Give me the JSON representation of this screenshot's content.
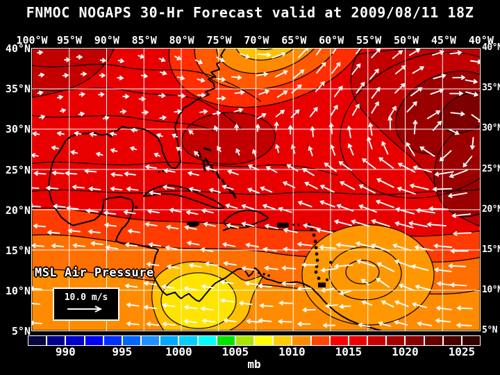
{
  "title": "FNMOC NOGAPS 30-Hr Forecast valid at 2009/08/11 18Z",
  "map": {
    "lon_labels": [
      "100°W",
      "95°W",
      "90°W",
      "85°W",
      "80°W",
      "75°W",
      "70°W",
      "65°W",
      "60°W",
      "55°W",
      "50°W",
      "45°W",
      "40°W"
    ],
    "lat_labels": [
      "40°N",
      "35°N",
      "30°N",
      "25°N",
      "20°N",
      "15°N",
      "10°N",
      "5°N"
    ],
    "field_label": "MSL Air Pressure",
    "wind_legend_label": "10.0 m/s",
    "grid_color": "#ffffff",
    "coast_color": "#000000",
    "arrow_color": "#ffffff",
    "field_colors": {
      "base": "#E80000",
      "high": "#C20000",
      "high_core": "#9A0000",
      "high_deep": "#7C0000",
      "band1": "#FF3B00",
      "band2": "#FF6F00",
      "band3": "#FF8C00",
      "swirl": "#FF9800",
      "trough1": "#FF2D00",
      "trough2": "#FF5A00",
      "trough3": "#FF8C00",
      "trough4": "#FFC100",
      "trough5": "#FFE400",
      "low_ring": "#FFC100",
      "low_core": "#FFE400"
    }
  },
  "colorbar": {
    "unit_label": "mb",
    "tick_labels": [
      "990",
      "995",
      "1000",
      "1005",
      "1010",
      "1015",
      "1020",
      "1025"
    ],
    "cell_colors": [
      "#05053F",
      "#00008F",
      "#0000CF",
      "#0000FF",
      "#0030FF",
      "#0066FF",
      "#1E90FF",
      "#00A8FF",
      "#00CFFF",
      "#00FFFF",
      "#00E400",
      "#A6E600",
      "#FFFF00",
      "#FFCC00",
      "#FF8C00",
      "#FF4500",
      "#FF0000",
      "#ED0000",
      "#CB0000",
      "#A60000",
      "#8B0000",
      "#690000",
      "#4A0000",
      "#320000"
    ]
  }
}
